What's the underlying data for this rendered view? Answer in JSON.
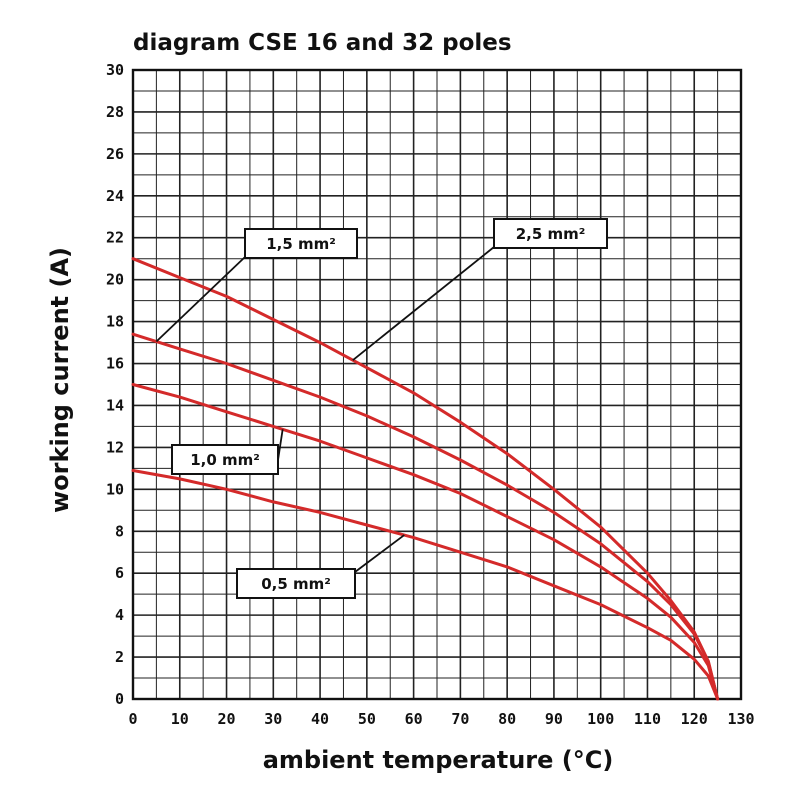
{
  "chart_data": {
    "type": "line",
    "title": "diagram CSE 16 and 32 poles",
    "xlabel": "ambient temperature (°C)",
    "ylabel": "working current (A)",
    "xlim": [
      0,
      130
    ],
    "ylim": [
      0,
      30
    ],
    "x_ticks": [
      "0",
      "10",
      "20",
      "30",
      "40",
      "50",
      "60",
      "70",
      "80",
      "90",
      "100",
      "110",
      "120",
      "130"
    ],
    "y_ticks": [
      "0",
      "2",
      "4",
      "6",
      "8",
      "10",
      "12",
      "14",
      "16",
      "18",
      "20",
      "22",
      "24",
      "26",
      "28",
      "30"
    ],
    "grid": true,
    "line_color": "#d42a2a",
    "series": [
      {
        "name": "2,5 mm²",
        "x": [
          0,
          10,
          20,
          30,
          40,
          50,
          60,
          70,
          80,
          90,
          100,
          110,
          115,
          120,
          123,
          125
        ],
        "y": [
          21.0,
          20.1,
          19.2,
          18.1,
          17.0,
          15.8,
          14.6,
          13.2,
          11.7,
          10.0,
          8.2,
          6.0,
          4.7,
          3.2,
          1.8,
          0
        ]
      },
      {
        "name": "1,5 mm²",
        "x": [
          0,
          10,
          20,
          30,
          40,
          50,
          60,
          70,
          80,
          90,
          100,
          110,
          115,
          120,
          123,
          125
        ],
        "y": [
          17.4,
          16.7,
          16.0,
          15.2,
          14.4,
          13.5,
          12.5,
          11.4,
          10.2,
          8.9,
          7.4,
          5.6,
          4.5,
          3.1,
          1.8,
          0
        ]
      },
      {
        "name": "1,0 mm²",
        "x": [
          0,
          10,
          20,
          30,
          40,
          50,
          60,
          70,
          80,
          90,
          100,
          110,
          115,
          120,
          123,
          125
        ],
        "y": [
          15.0,
          14.4,
          13.7,
          13.0,
          12.3,
          11.5,
          10.7,
          9.8,
          8.7,
          7.6,
          6.3,
          4.8,
          3.9,
          2.7,
          1.6,
          0
        ]
      },
      {
        "name": "0,5 mm²",
        "x": [
          0,
          10,
          20,
          30,
          40,
          50,
          60,
          70,
          80,
          90,
          100,
          110,
          115,
          120,
          123,
          125
        ],
        "y": [
          10.9,
          10.5,
          10.0,
          9.4,
          8.9,
          8.3,
          7.7,
          7.0,
          6.3,
          5.4,
          4.5,
          3.4,
          2.8,
          1.9,
          1.1,
          0
        ]
      }
    ],
    "annotations": [
      {
        "text": "1,5 mm²",
        "series": "1,5 mm²",
        "at_x": 5
      },
      {
        "text": "2,5 mm²",
        "series": "2,5 mm²",
        "at_x": 47
      },
      {
        "text": "1,0 mm²",
        "series": "1,0 mm²",
        "at_x": 32
      },
      {
        "text": "0,5 mm²",
        "series": "0,5 mm²",
        "at_x": 58
      }
    ]
  }
}
